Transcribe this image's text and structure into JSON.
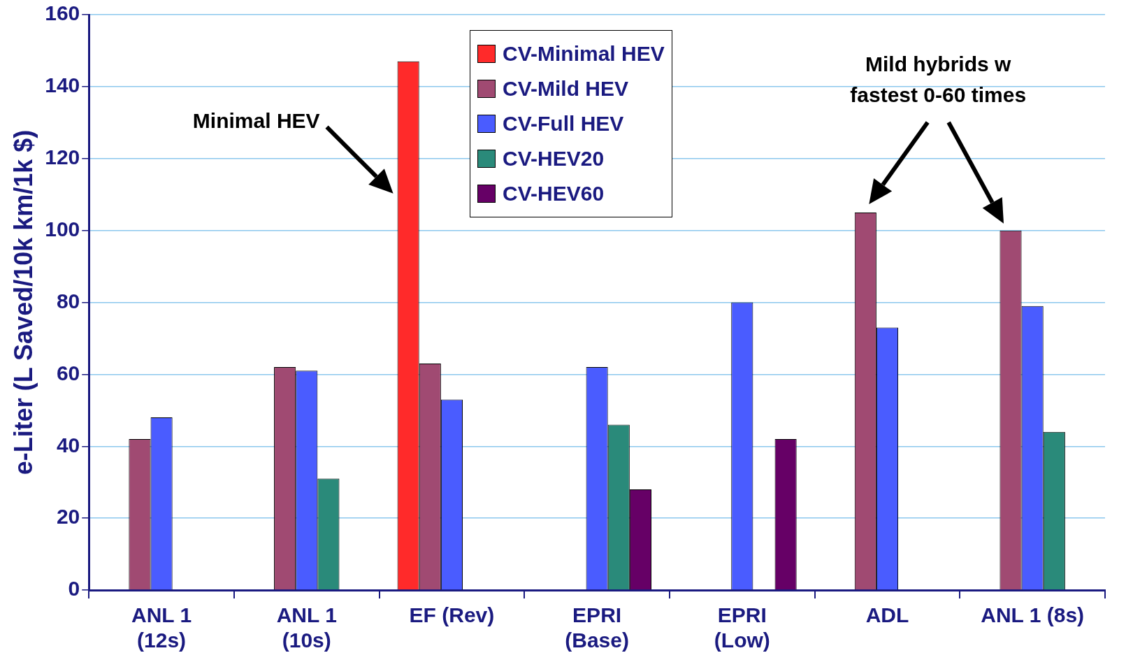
{
  "chart_data": {
    "type": "bar",
    "ylabel": "e-Liter (L Saved/10k km/1k $)",
    "categories": [
      "ANL 1\n(12s)",
      "ANL 1\n(10s)",
      "EF (Rev)",
      "EPRI\n(Base)",
      "EPRI\n(Low)",
      "ADL",
      "ANL 1 (8s)"
    ],
    "series": [
      {
        "name": "CV-Minimal HEV",
        "color": "#ff2a2a",
        "values": [
          null,
          null,
          147,
          null,
          null,
          null,
          null
        ]
      },
      {
        "name": "CV-Mild HEV",
        "color": "#a04a72",
        "values": [
          42,
          62,
          63,
          null,
          null,
          105,
          100
        ]
      },
      {
        "name": "CV-Full HEV",
        "color": "#4a5cff",
        "values": [
          48,
          61,
          53,
          62,
          80,
          73,
          79
        ]
      },
      {
        "name": "CV-HEV20",
        "color": "#2a8a7a",
        "values": [
          null,
          31,
          null,
          46,
          null,
          null,
          44
        ]
      },
      {
        "name": "CV-HEV60",
        "color": "#660066",
        "values": [
          null,
          null,
          null,
          28,
          42,
          null,
          null
        ]
      }
    ],
    "ylim": [
      0,
      160
    ],
    "yticks": [
      0,
      20,
      40,
      60,
      80,
      100,
      120,
      140,
      160
    ],
    "grid": "y",
    "legend": "top",
    "annotations": [
      "Minimal HEV",
      "Mild hybrids w\nfastest 0-60 times"
    ]
  }
}
